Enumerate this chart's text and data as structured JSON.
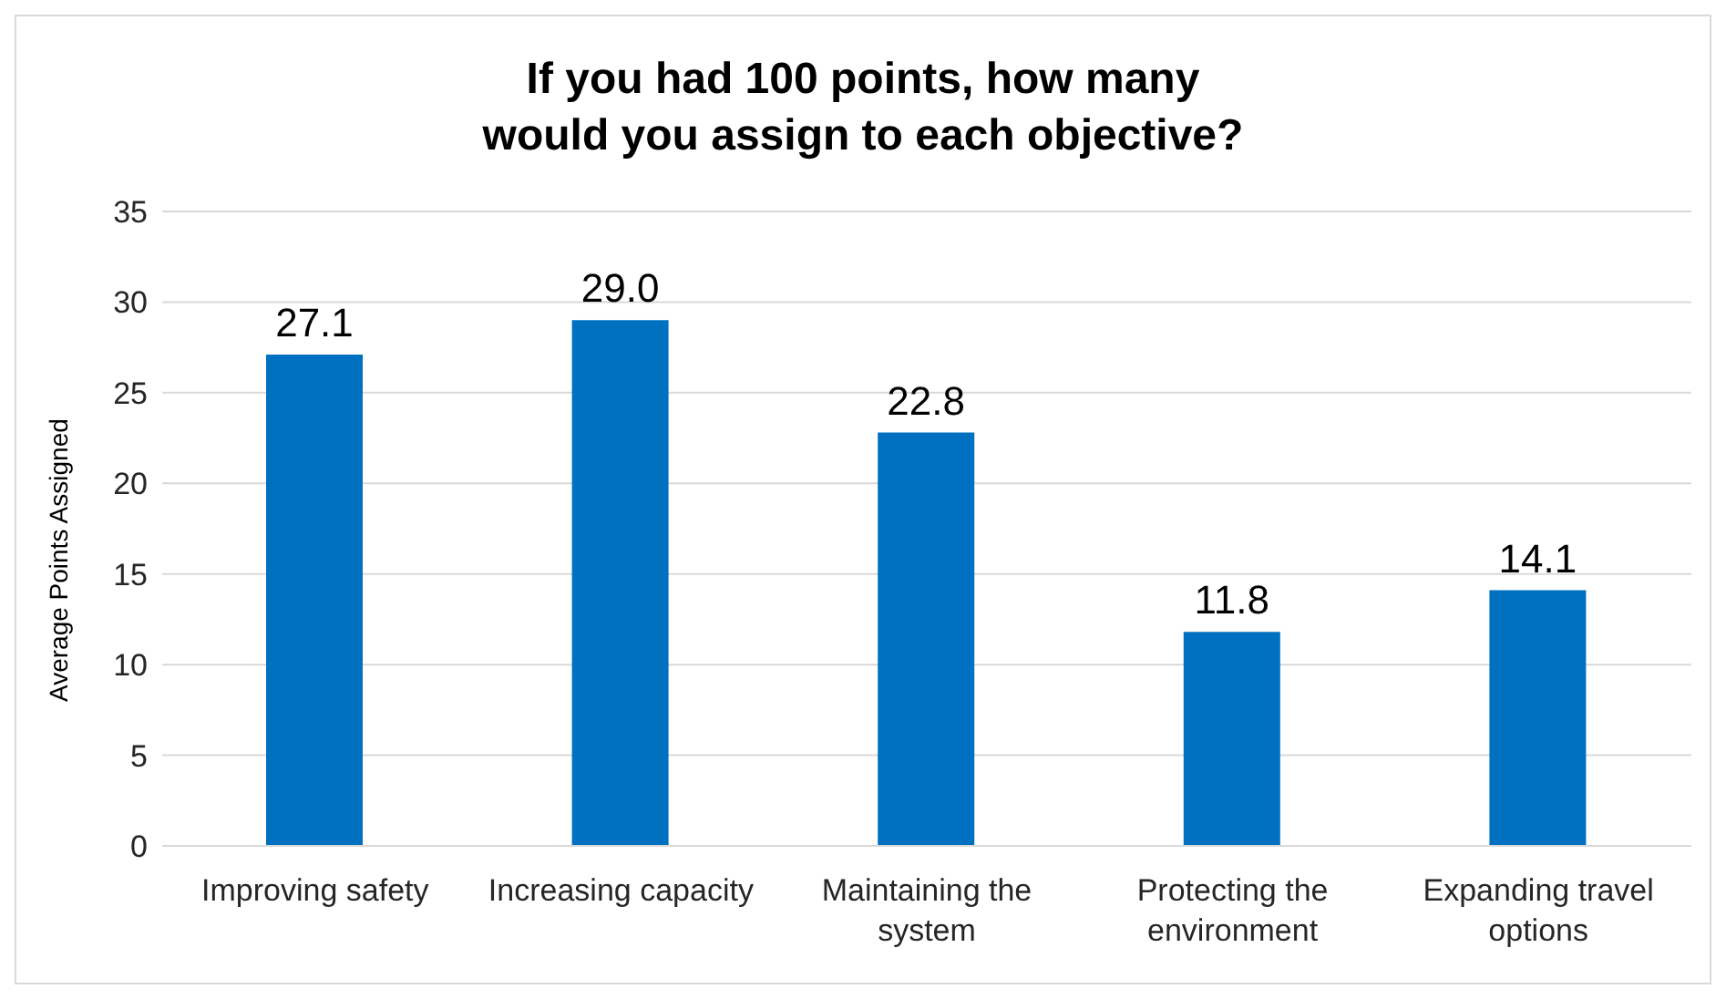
{
  "chart_data": {
    "type": "bar",
    "title": "If you had 100 points, how many would you assign to each objective?",
    "ylabel": "Average Points Assigned",
    "categories": [
      "Improving safety",
      "Increasing capacity",
      "Maintaining the system",
      "Protecting the environment",
      "Expanding travel options"
    ],
    "values": [
      27.1,
      29.0,
      22.8,
      11.8,
      14.1
    ],
    "value_labels": [
      "27.1",
      "29.0",
      "22.8",
      "11.8",
      "14.1"
    ],
    "color": "#0070c0",
    "ylim": [
      0,
      35
    ],
    "yticks": [
      0,
      5,
      10,
      15,
      20,
      25,
      30,
      35
    ],
    "grid": "y",
    "legend": false
  }
}
